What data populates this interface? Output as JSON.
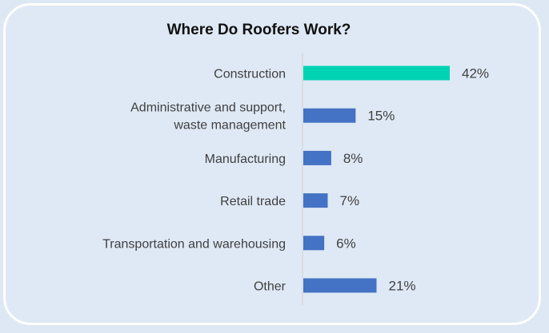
{
  "chart_data": {
    "type": "bar",
    "orientation": "horizontal",
    "title": "Where Do Roofers Work?",
    "categories": [
      [
        "Construction"
      ],
      [
        "Administrative and support,",
        "waste management"
      ],
      [
        "Manufacturing"
      ],
      [
        "Retail trade"
      ],
      [
        "Transportation and warehousing"
      ],
      [
        "Other"
      ]
    ],
    "values": [
      42,
      15,
      8,
      7,
      6,
      21
    ],
    "value_labels": [
      "42%",
      "15%",
      "8%",
      "7%",
      "6%",
      "21%"
    ],
    "unit": "%",
    "xlim": [
      0,
      42
    ],
    "grid": false,
    "colors": {
      "highlight": "#00d2b4",
      "default": "#4472c4",
      "axis": "#d0d0d0",
      "text": "#404040",
      "background": "#dfe9f5",
      "border": "#ffffff"
    },
    "highlight_index": 0
  }
}
